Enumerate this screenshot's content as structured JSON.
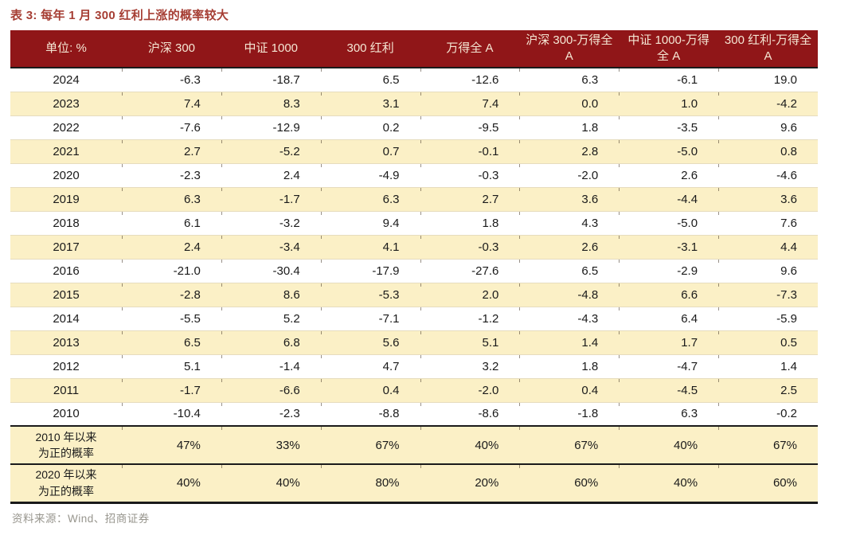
{
  "title": "表 3: 每年 1 月 300 红利上涨的概率较大",
  "source_note": "资料来源：Wind、招商证券",
  "colors": {
    "header_bg": "#901618",
    "header_text": "#F5E7D4",
    "stripe": "#FBF0C6",
    "title_red": "#A63E34",
    "rule_black": "#1A1A1A",
    "row_line": "#E6DCBE",
    "source_gray": "#97958D"
  },
  "chart_data": {
    "type": "table",
    "title": "表 3: 每年 1 月 300 红利上涨的概率较大",
    "unit_label": "单位: %",
    "columns": [
      "沪深 300",
      "中证 1000",
      "300 红利",
      "万得全 A",
      "沪深 300-万得全 A",
      "中证 1000-万得全 A",
      "300 红利-万得全 A"
    ],
    "rows": [
      {
        "year": "2024",
        "values": [
          "-6.3",
          "-18.7",
          "6.5",
          "-12.6",
          "6.3",
          "-6.1",
          "19.0"
        ]
      },
      {
        "year": "2023",
        "values": [
          "7.4",
          "8.3",
          "3.1",
          "7.4",
          "0.0",
          "1.0",
          "-4.2"
        ]
      },
      {
        "year": "2022",
        "values": [
          "-7.6",
          "-12.9",
          "0.2",
          "-9.5",
          "1.8",
          "-3.5",
          "9.6"
        ]
      },
      {
        "year": "2021",
        "values": [
          "2.7",
          "-5.2",
          "0.7",
          "-0.1",
          "2.8",
          "-5.0",
          "0.8"
        ]
      },
      {
        "year": "2020",
        "values": [
          "-2.3",
          "2.4",
          "-4.9",
          "-0.3",
          "-2.0",
          "2.6",
          "-4.6"
        ]
      },
      {
        "year": "2019",
        "values": [
          "6.3",
          "-1.7",
          "6.3",
          "2.7",
          "3.6",
          "-4.4",
          "3.6"
        ]
      },
      {
        "year": "2018",
        "values": [
          "6.1",
          "-3.2",
          "9.4",
          "1.8",
          "4.3",
          "-5.0",
          "7.6"
        ]
      },
      {
        "year": "2017",
        "values": [
          "2.4",
          "-3.4",
          "4.1",
          "-0.3",
          "2.6",
          "-3.1",
          "4.4"
        ]
      },
      {
        "year": "2016",
        "values": [
          "-21.0",
          "-30.4",
          "-17.9",
          "-27.6",
          "6.5",
          "-2.9",
          "9.6"
        ]
      },
      {
        "year": "2015",
        "values": [
          "-2.8",
          "8.6",
          "-5.3",
          "2.0",
          "-4.8",
          "6.6",
          "-7.3"
        ]
      },
      {
        "year": "2014",
        "values": [
          "-5.5",
          "5.2",
          "-7.1",
          "-1.2",
          "-4.3",
          "6.4",
          "-5.9"
        ]
      },
      {
        "year": "2013",
        "values": [
          "6.5",
          "6.8",
          "5.6",
          "5.1",
          "1.4",
          "1.7",
          "0.5"
        ]
      },
      {
        "year": "2012",
        "values": [
          "5.1",
          "-1.4",
          "4.7",
          "3.2",
          "1.8",
          "-4.7",
          "1.4"
        ]
      },
      {
        "year": "2011",
        "values": [
          "-1.7",
          "-6.6",
          "0.4",
          "-2.0",
          "0.4",
          "-4.5",
          "2.5"
        ]
      },
      {
        "year": "2010",
        "values": [
          "-10.4",
          "-2.3",
          "-8.8",
          "-8.6",
          "-1.8",
          "6.3",
          "-0.2"
        ]
      }
    ],
    "summary_rows": [
      {
        "label_lines": [
          "2010 年以来",
          "为正的概率"
        ],
        "values": [
          "47%",
          "33%",
          "67%",
          "40%",
          "67%",
          "40%",
          "67%"
        ]
      },
      {
        "label_lines": [
          "2020 年以来",
          "为正的概率"
        ],
        "values": [
          "40%",
          "40%",
          "80%",
          "20%",
          "60%",
          "40%",
          "60%"
        ]
      }
    ]
  }
}
